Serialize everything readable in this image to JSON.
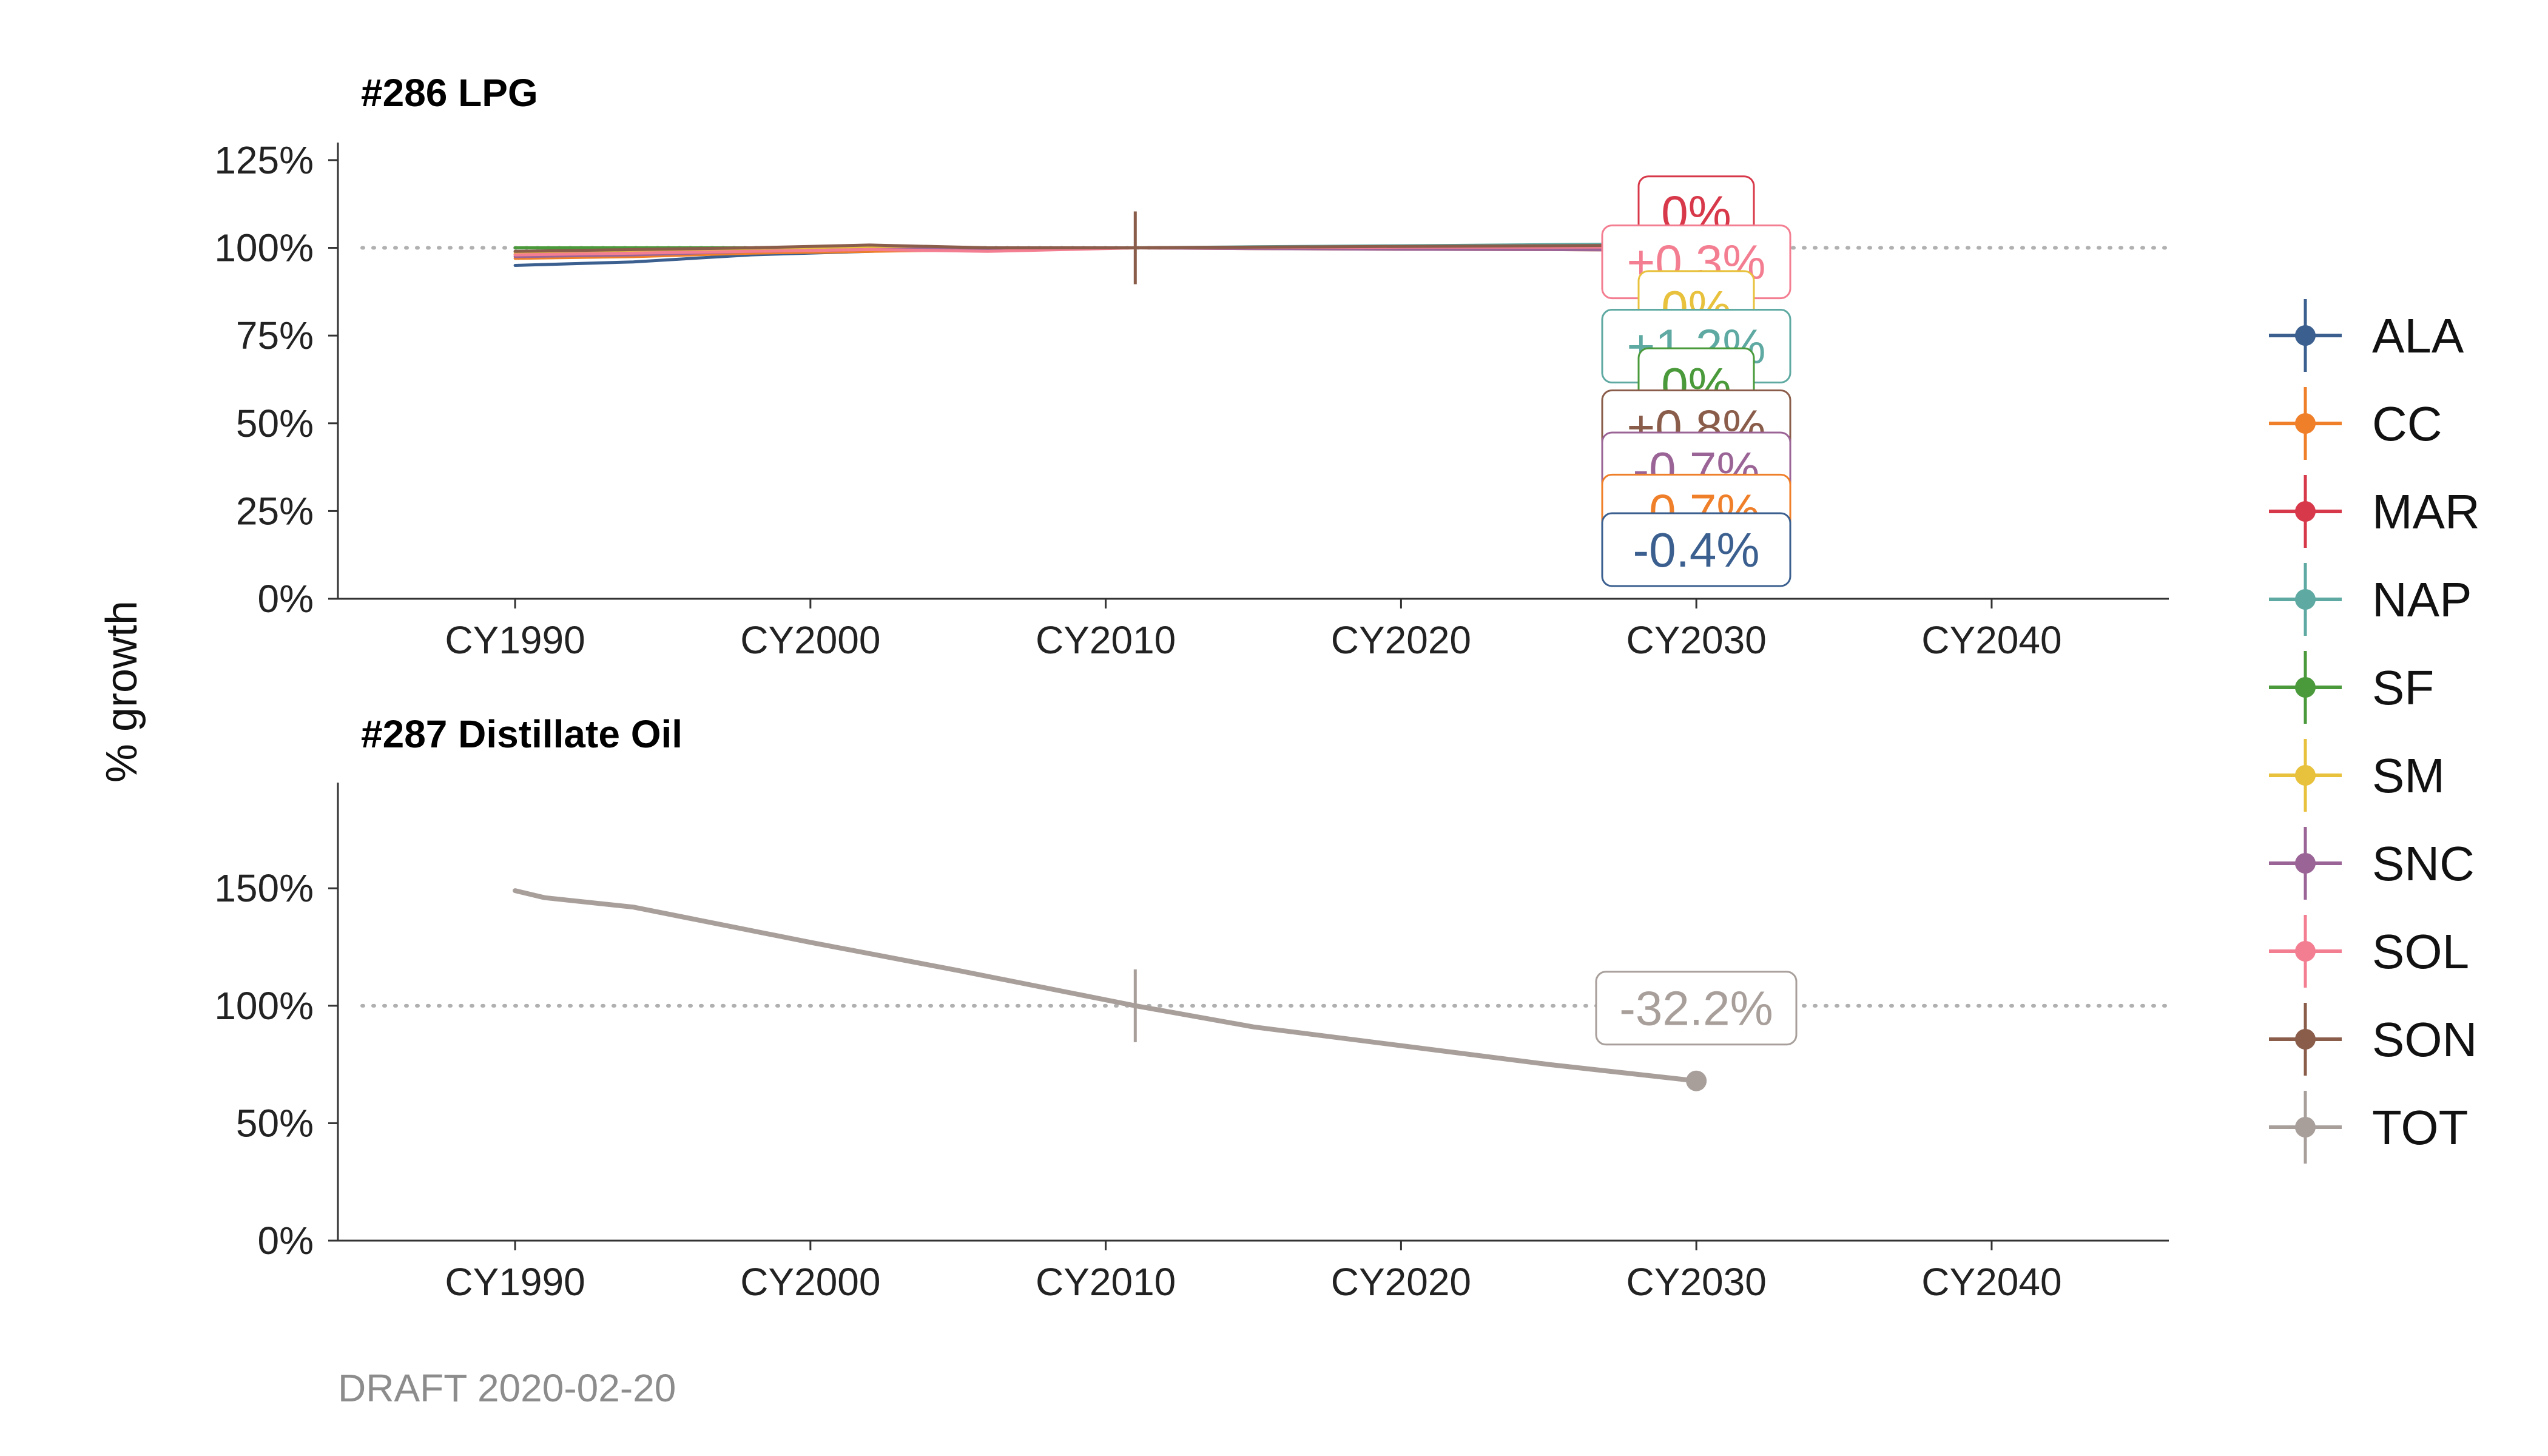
{
  "ylabel": "% growth",
  "footer": "DRAFT 2020-02-20",
  "colors": {
    "ALA": "#3b5f8f",
    "CC": "#f07f2a",
    "MAR": "#d8394a",
    "NAP": "#5ea9a2",
    "SF": "#4a9a3b",
    "SM": "#e8c13d",
    "SNC": "#9b6496",
    "SOL": "#f47e91",
    "SON": "#8a5c4a",
    "TOT": "#a89f9b"
  },
  "legend": [
    "ALA",
    "CC",
    "MAR",
    "NAP",
    "SF",
    "SM",
    "SNC",
    "SOL",
    "SON",
    "TOT"
  ],
  "chart_data": [
    {
      "type": "line",
      "title": "#286 LPG",
      "xlabel": "",
      "ylabel": "% growth",
      "xlim": [
        1984,
        2046
      ],
      "ylim": [
        0,
        1.3
      ],
      "yticks": [
        0,
        0.25,
        0.5,
        0.75,
        1.0,
        1.25
      ],
      "ytick_labels": [
        "0%",
        "25%",
        "50%",
        "75%",
        "100%",
        "125%"
      ],
      "xticks": [
        1990,
        2000,
        2010,
        2020,
        2030,
        2040
      ],
      "xtick_labels": [
        "CY1990",
        "CY2000",
        "CY2010",
        "CY2020",
        "CY2030",
        "CY2040"
      ],
      "reference_value": 1.0,
      "reference_year": 2011,
      "series": [
        {
          "name": "ALA",
          "x": [
            1990,
            1994,
            1998,
            2002,
            2006,
            2011,
            2015,
            2020,
            2025,
            2030
          ],
          "values": [
            0.95,
            0.96,
            0.98,
            0.99,
            1.0,
            1.0,
            0.999,
            0.998,
            0.997,
            0.996
          ]
        },
        {
          "name": "CC",
          "x": [
            1990,
            1994,
            1998,
            2002,
            2006,
            2011,
            2015,
            2020,
            2025,
            2030
          ],
          "values": [
            0.97,
            0.975,
            0.985,
            0.99,
            0.995,
            1.0,
            0.998,
            0.996,
            0.995,
            0.993
          ]
        },
        {
          "name": "MAR",
          "x": [
            1990,
            1994,
            1998,
            2002,
            2006,
            2011,
            2015,
            2020,
            2025,
            2030
          ],
          "values": [
            0.98,
            0.985,
            0.99,
            0.995,
            0.998,
            1.0,
            1.0,
            1.0,
            1.0,
            1.0
          ]
        },
        {
          "name": "NAP",
          "x": [
            1990,
            1994,
            1998,
            2002,
            2006,
            2011,
            2015,
            2020,
            2025,
            2030
          ],
          "values": [
            0.99,
            0.995,
            1.0,
            1.0,
            1.0,
            1.0,
            1.003,
            1.006,
            1.009,
            1.012
          ]
        },
        {
          "name": "SF",
          "x": [
            1990,
            1994,
            1998,
            2002,
            2006,
            2011,
            2015,
            2020,
            2025,
            2030
          ],
          "values": [
            1.0,
            1.0,
            1.0,
            1.005,
            1.0,
            1.0,
            1.0,
            1.0,
            1.0,
            1.0
          ]
        },
        {
          "name": "SM",
          "x": [
            1990,
            1994,
            1998,
            2002,
            2006,
            2011,
            2015,
            2020,
            2025,
            2030
          ],
          "values": [
            0.985,
            0.99,
            0.995,
            1.0,
            1.0,
            1.0,
            1.0,
            1.0,
            1.0,
            1.0
          ]
        },
        {
          "name": "SNC",
          "x": [
            1990,
            1994,
            1998,
            2002,
            2006,
            2011,
            2015,
            2020,
            2025,
            2030
          ],
          "values": [
            0.975,
            0.98,
            0.99,
            0.995,
            0.998,
            1.0,
            0.998,
            0.996,
            0.995,
            0.993
          ]
        },
        {
          "name": "SOL",
          "x": [
            1990,
            1994,
            1998,
            2002,
            2006,
            2011,
            2015,
            2020,
            2025,
            2030
          ],
          "values": [
            0.98,
            0.985,
            0.99,
            0.995,
            0.99,
            1.0,
            1.001,
            1.002,
            1.002,
            1.003
          ]
        },
        {
          "name": "SON",
          "x": [
            1990,
            1994,
            1998,
            2002,
            2006,
            2011,
            2015,
            2020,
            2025,
            2030
          ],
          "values": [
            0.99,
            0.995,
            1.0,
            1.008,
            1.0,
            1.0,
            1.002,
            1.004,
            1.006,
            1.008
          ]
        }
      ],
      "labels": [
        {
          "series": "MAR",
          "text": "0%",
          "y": 1.1
        },
        {
          "series": "SOL",
          "text": "+0.3%",
          "y": 0.96
        },
        {
          "series": "SM",
          "text": "0%",
          "y": 0.83
        },
        {
          "series": "NAP",
          "text": "+1.2%",
          "y": 0.72
        },
        {
          "series": "SF",
          "text": "0%",
          "y": 0.61
        },
        {
          "series": "SON",
          "text": "+0.8%",
          "y": 0.49
        },
        {
          "series": "SNC",
          "text": "-0.7%",
          "y": 0.37
        },
        {
          "series": "CC",
          "text": "-0.7%",
          "y": 0.25
        },
        {
          "series": "ALA",
          "text": "-0.4%",
          "y": 0.14
        }
      ]
    },
    {
      "type": "line",
      "title": "#287 Distillate Oil",
      "xlabel": "",
      "ylabel": "% growth",
      "xlim": [
        1984,
        2046
      ],
      "ylim": [
        0,
        1.95
      ],
      "yticks": [
        0,
        0.5,
        1.0,
        1.5
      ],
      "ytick_labels": [
        "0%",
        "50%",
        "100%",
        "150%"
      ],
      "xticks": [
        1990,
        2000,
        2010,
        2020,
        2030,
        2040
      ],
      "xtick_labels": [
        "CY1990",
        "CY2000",
        "CY2010",
        "CY2020",
        "CY2030",
        "CY2040"
      ],
      "reference_value": 1.0,
      "reference_year": 2011,
      "series": [
        {
          "name": "TOT",
          "x": [
            1990,
            1991,
            1994,
            2000,
            2005,
            2011,
            2015,
            2020,
            2025,
            2030
          ],
          "values": [
            1.49,
            1.46,
            1.42,
            1.27,
            1.15,
            1.0,
            0.91,
            0.83,
            0.75,
            0.68
          ]
        }
      ],
      "labels": [
        {
          "series": "TOT",
          "text": "-32.2%",
          "y": 0.99
        }
      ]
    }
  ]
}
